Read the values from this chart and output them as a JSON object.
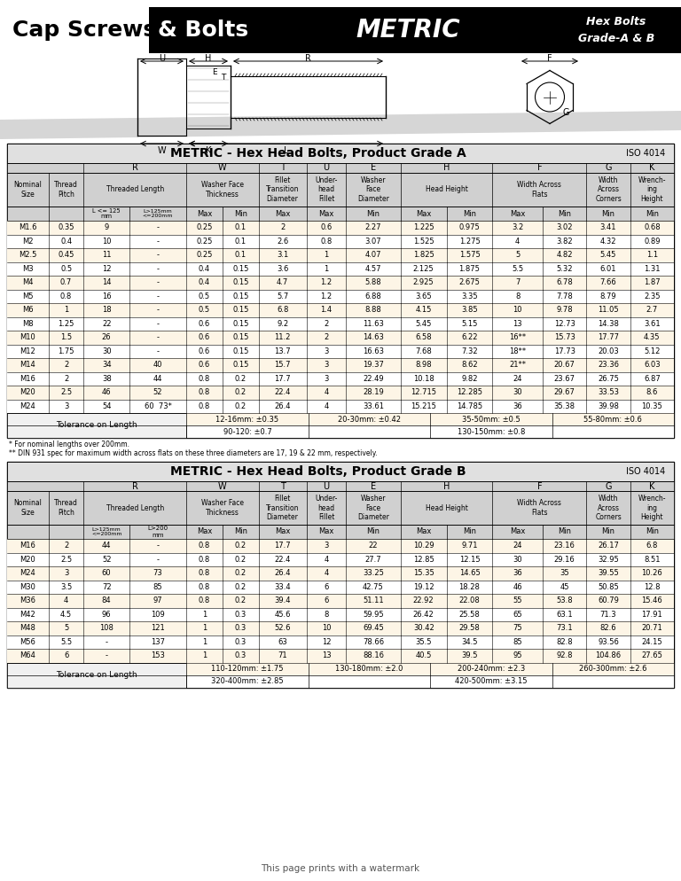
{
  "bg_color": "#ffffff",
  "header_black_bg": "#000000",
  "table_header_bg": "#c8c8c8",
  "row_odd_bg": "#fdf5e6",
  "row_even_bg": "#ffffff",
  "tol_bg": "#fdf5e6",
  "grade_a_title": "METRIC - Hex Head Bolts, Product Grade A",
  "grade_b_title": "METRIC - Hex Head Bolts, Product Grade B",
  "iso_label": "ISO 4014",
  "grade_a_data": [
    [
      "M1.6",
      "0.35",
      "9",
      "-",
      "0.25",
      "0.1",
      "2",
      "0.6",
      "2.27",
      "1.225",
      "0.975",
      "3.2",
      "3.02",
      "3.41",
      "0.68"
    ],
    [
      "M2",
      "0.4",
      "10",
      "-",
      "0.25",
      "0.1",
      "2.6",
      "0.8",
      "3.07",
      "1.525",
      "1.275",
      "4",
      "3.82",
      "4.32",
      "0.89"
    ],
    [
      "M2.5",
      "0.45",
      "11",
      "-",
      "0.25",
      "0.1",
      "3.1",
      "1",
      "4.07",
      "1.825",
      "1.575",
      "5",
      "4.82",
      "5.45",
      "1.1"
    ],
    [
      "M3",
      "0.5",
      "12",
      "-",
      "0.4",
      "0.15",
      "3.6",
      "1",
      "4.57",
      "2.125",
      "1.875",
      "5.5",
      "5.32",
      "6.01",
      "1.31"
    ],
    [
      "M4",
      "0.7",
      "14",
      "-",
      "0.4",
      "0.15",
      "4.7",
      "1.2",
      "5.88",
      "2.925",
      "2.675",
      "7",
      "6.78",
      "7.66",
      "1.87"
    ],
    [
      "M5",
      "0.8",
      "16",
      "-",
      "0.5",
      "0.15",
      "5.7",
      "1.2",
      "6.88",
      "3.65",
      "3.35",
      "8",
      "7.78",
      "8.79",
      "2.35"
    ],
    [
      "M6",
      "1",
      "18",
      "-",
      "0.5",
      "0.15",
      "6.8",
      "1.4",
      "8.88",
      "4.15",
      "3.85",
      "10",
      "9.78",
      "11.05",
      "2.7"
    ],
    [
      "M8",
      "1.25",
      "22",
      "-",
      "0.6",
      "0.15",
      "9.2",
      "2",
      "11.63",
      "5.45",
      "5.15",
      "13",
      "12.73",
      "14.38",
      "3.61"
    ],
    [
      "M10",
      "1.5",
      "26",
      "-",
      "0.6",
      "0.15",
      "11.2",
      "2",
      "14.63",
      "6.58",
      "6.22",
      "16**",
      "15.73",
      "17.77",
      "4.35"
    ],
    [
      "M12",
      "1.75",
      "30",
      "-",
      "0.6",
      "0.15",
      "13.7",
      "3",
      "16.63",
      "7.68",
      "7.32",
      "18**",
      "17.73",
      "20.03",
      "5.12"
    ],
    [
      "M14",
      "2",
      "34",
      "40",
      "0.6",
      "0.15",
      "15.7",
      "3",
      "19.37",
      "8.98",
      "8.62",
      "21**",
      "20.67",
      "23.36",
      "6.03"
    ],
    [
      "M16",
      "2",
      "38",
      "44",
      "0.8",
      "0.2",
      "17.7",
      "3",
      "22.49",
      "10.18",
      "9.82",
      "24",
      "23.67",
      "26.75",
      "6.87"
    ],
    [
      "M20",
      "2.5",
      "46",
      "52",
      "0.8",
      "0.2",
      "22.4",
      "4",
      "28.19",
      "12.715",
      "12.285",
      "30",
      "29.67",
      "33.53",
      "8.6"
    ],
    [
      "M24",
      "3",
      "54",
      "60  73*",
      "0.8",
      "0.2",
      "26.4",
      "4",
      "33.61",
      "15.215",
      "14.785",
      "36",
      "35.38",
      "39.98",
      "10.35"
    ]
  ],
  "grade_a_tol_row1": [
    "12-16mm: ±0.35",
    "20-30mm: ±0.42",
    "35-50mm: ±0.5",
    "55-80mm: ±0.6"
  ],
  "grade_a_tol_row2": [
    "90-120: ±0.7",
    "",
    "130-150mm: ±0.8",
    ""
  ],
  "grade_b_data": [
    [
      "M16",
      "2",
      "44",
      "-",
      "0.8",
      "0.2",
      "17.7",
      "3",
      "22",
      "10.29",
      "9.71",
      "24",
      "23.16",
      "26.17",
      "6.8"
    ],
    [
      "M20",
      "2.5",
      "52",
      "-",
      "0.8",
      "0.2",
      "22.4",
      "4",
      "27.7",
      "12.85",
      "12.15",
      "30",
      "29.16",
      "32.95",
      "8.51"
    ],
    [
      "M24",
      "3",
      "60",
      "73",
      "0.8",
      "0.2",
      "26.4",
      "4",
      "33.25",
      "15.35",
      "14.65",
      "36",
      "35",
      "39.55",
      "10.26"
    ],
    [
      "M30",
      "3.5",
      "72",
      "85",
      "0.8",
      "0.2",
      "33.4",
      "6",
      "42.75",
      "19.12",
      "18.28",
      "46",
      "45",
      "50.85",
      "12.8"
    ],
    [
      "M36",
      "4",
      "84",
      "97",
      "0.8",
      "0.2",
      "39.4",
      "6",
      "51.11",
      "22.92",
      "22.08",
      "55",
      "53.8",
      "60.79",
      "15.46"
    ],
    [
      "M42",
      "4.5",
      "96",
      "109",
      "1",
      "0.3",
      "45.6",
      "8",
      "59.95",
      "26.42",
      "25.58",
      "65",
      "63.1",
      "71.3",
      "17.91"
    ],
    [
      "M48",
      "5",
      "108",
      "121",
      "1",
      "0.3",
      "52.6",
      "10",
      "69.45",
      "30.42",
      "29.58",
      "75",
      "73.1",
      "82.6",
      "20.71"
    ],
    [
      "M56",
      "5.5",
      "-",
      "137",
      "1",
      "0.3",
      "63",
      "12",
      "78.66",
      "35.5",
      "34.5",
      "85",
      "82.8",
      "93.56",
      "24.15"
    ],
    [
      "M64",
      "6",
      "-",
      "153",
      "1",
      "0.3",
      "71",
      "13",
      "88.16",
      "40.5",
      "39.5",
      "95",
      "92.8",
      "104.86",
      "27.65"
    ]
  ],
  "grade_b_tol_row1": [
    "110-120mm: ±1.75",
    "130-180mm: ±2.0",
    "200-240mm: ±2.3",
    "260-300mm: ±2.6"
  ],
  "grade_b_tol_row2": [
    "320-400mm: ±2.85",
    "",
    "420-500mm: ±3.15",
    ""
  ],
  "footnote1": "* For nominal lengths over 200mm.",
  "footnote2": "** DIN 931 spec for maximum width across flats on these three diameters are 17, 19 & 22 mm, respectively.",
  "watermark": "This page prints with a watermark"
}
